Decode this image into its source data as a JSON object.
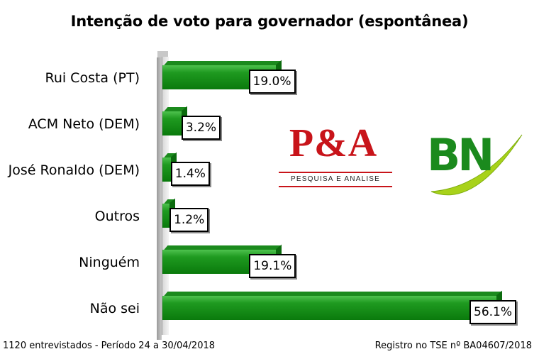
{
  "chart_data": {
    "type": "bar",
    "orientation": "horizontal",
    "title": "Intenção de voto para governador (espontânea)",
    "categories": [
      "Rui Costa (PT)",
      "ACM Neto (DEM)",
      "José Ronaldo (DEM)",
      "Outros",
      "Ninguém",
      "Não sei"
    ],
    "values": [
      19.0,
      3.2,
      1.4,
      1.2,
      19.1,
      56.1
    ],
    "value_labels": [
      "19.0%",
      "3.2%",
      "1.4%",
      "1.2%",
      "19.1%",
      "56.1%"
    ],
    "xlim": [
      0,
      58
    ],
    "grid": false,
    "bar_color": "#1f9a20"
  },
  "footer": {
    "left": "1120 entrevistados - Período 24 a 30/04/2018",
    "right": "Registro no TSE nº BA04607/2018"
  },
  "logos": {
    "pa_text": "P&A",
    "pa_sub": "Pesquisa e Analise",
    "bn_text": "BN",
    "pa_color": "#c8141a",
    "bn_color": "#1b8a1d",
    "bn_swoosh_color": "#a8d21a"
  }
}
